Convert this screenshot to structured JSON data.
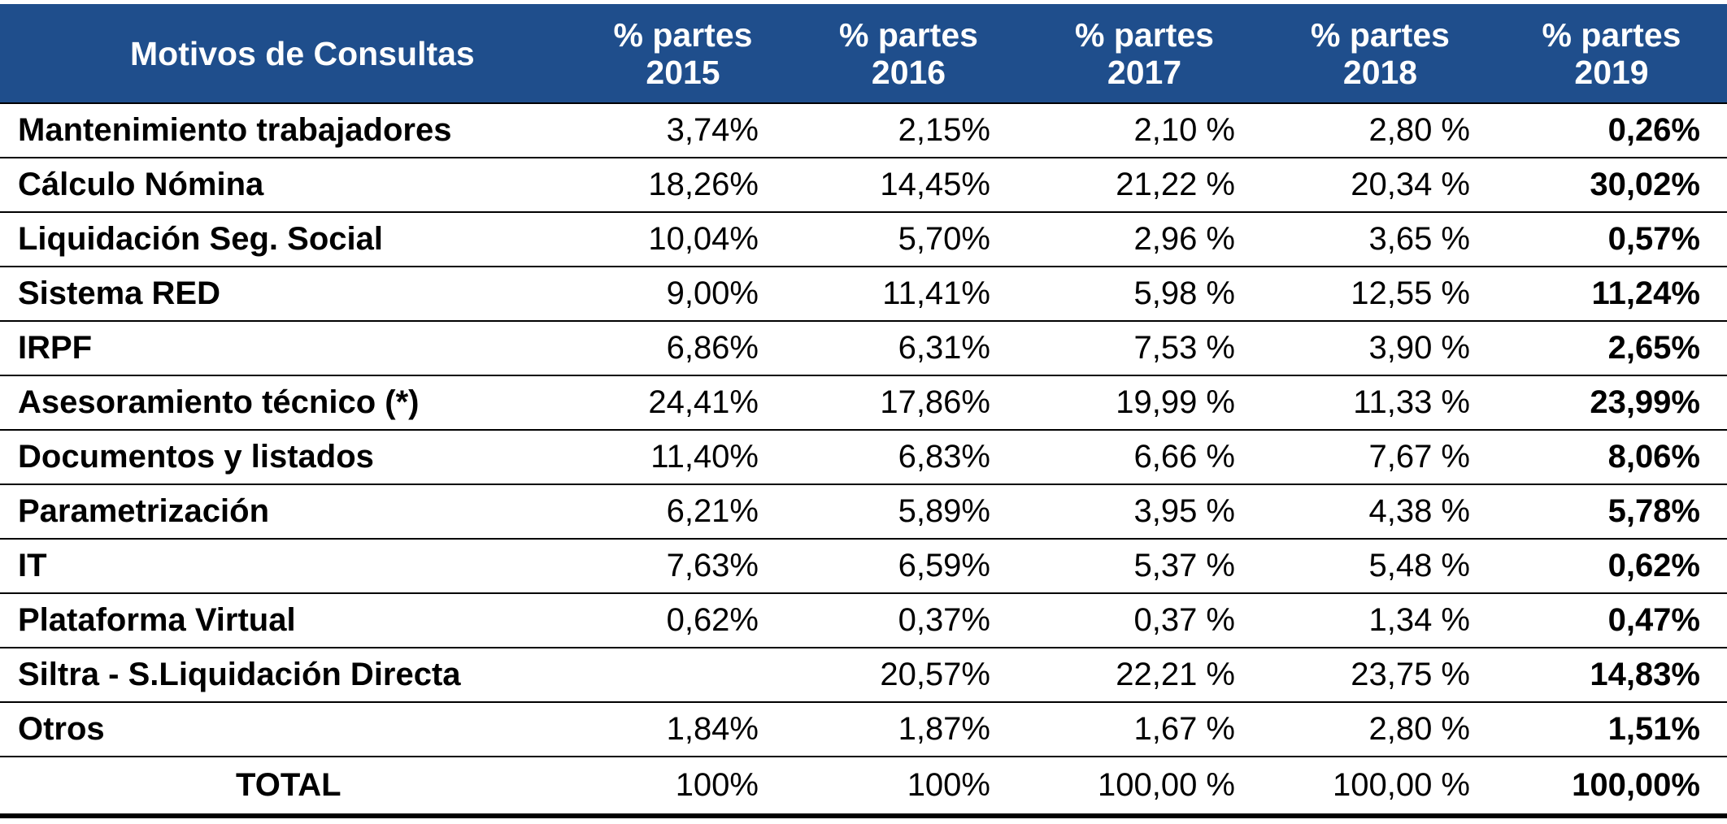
{
  "table": {
    "header": {
      "motivos": "Motivos de Consultas",
      "years": [
        {
          "line1": "% partes",
          "line2": "2015"
        },
        {
          "line1": "% partes",
          "line2": "2016"
        },
        {
          "line1": "% partes",
          "line2": "2017"
        },
        {
          "line1": "% partes",
          "line2": "2018"
        },
        {
          "line1": "% partes",
          "line2": "2019"
        }
      ]
    },
    "rows": [
      {
        "label": "Mantenimiento trabajadores",
        "values": [
          "3,74%",
          "2,15%",
          "2,10 %",
          "2,80 %",
          "0,26%"
        ]
      },
      {
        "label": "Cálculo Nómina",
        "values": [
          "18,26%",
          "14,45%",
          "21,22 %",
          "20,34 %",
          "30,02%"
        ]
      },
      {
        "label": "Liquidación Seg. Social",
        "values": [
          "10,04%",
          "5,70%",
          "2,96 %",
          "3,65 %",
          "0,57%"
        ]
      },
      {
        "label": "Sistema RED",
        "values": [
          "9,00%",
          "11,41%",
          "5,98 %",
          "12,55 %",
          "11,24%"
        ]
      },
      {
        "label": "IRPF",
        "values": [
          "6,86%",
          "6,31%",
          "7,53 %",
          "3,90 %",
          "2,65%"
        ]
      },
      {
        "label": "Asesoramiento técnico (*)",
        "values": [
          "24,41%",
          "17,86%",
          "19,99 %",
          "11,33 %",
          "23,99%"
        ]
      },
      {
        "label": "Documentos y listados",
        "values": [
          "11,40%",
          "6,83%",
          "6,66 %",
          "7,67 %",
          "8,06%"
        ]
      },
      {
        "label": "Parametrización",
        "values": [
          "6,21%",
          "5,89%",
          "3,95 %",
          "4,38 %",
          "5,78%"
        ]
      },
      {
        "label": "IT",
        "values": [
          "7,63%",
          "6,59%",
          "5,37 %",
          "5,48 %",
          "0,62%"
        ]
      },
      {
        "label": "Plataforma Virtual",
        "values": [
          "0,62%",
          "0,37%",
          "0,37 %",
          "1,34 %",
          "0,47%"
        ]
      },
      {
        "label": "Siltra - S.Liquidación Directa",
        "values": [
          "",
          "20,57%",
          "22,21 %",
          "23,75 %",
          "14,83%"
        ]
      },
      {
        "label": "Otros",
        "values": [
          "1,84%",
          "1,87%",
          "1,67 %",
          "2,80 %",
          "1,51%"
        ]
      }
    ],
    "total": {
      "label": "TOTAL",
      "values": [
        "100%",
        "100%",
        "100,00 %",
        "100,00 %",
        "100,00%"
      ]
    }
  },
  "colors": {
    "header_bg": "#1f4e8c",
    "header_text": "#ffffff",
    "text": "#000000",
    "rule": "#000000"
  }
}
